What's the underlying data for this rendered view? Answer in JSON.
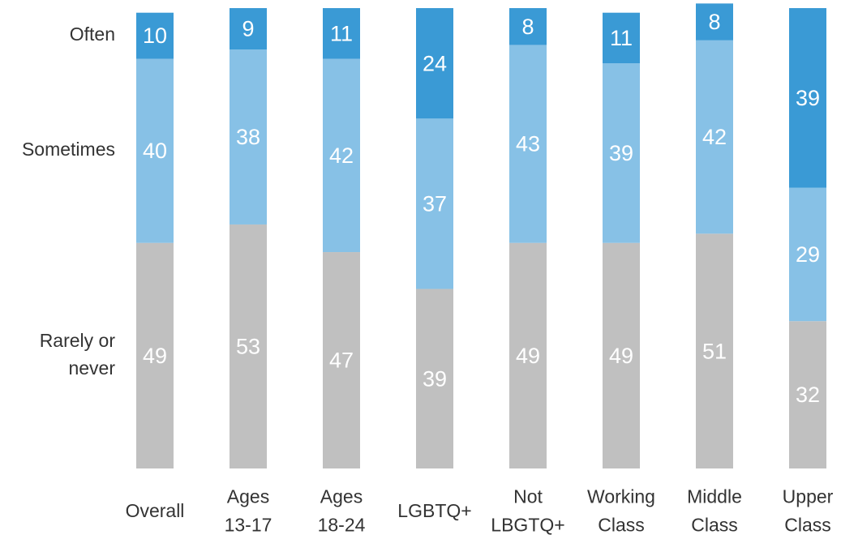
{
  "chart_data": {
    "type": "stacked_bar",
    "categories": [
      "Overall",
      "Ages 13-17",
      "Ages 18-24",
      "LGBTQ+",
      "Not LBGTQ+",
      "Working Class",
      "Middle Class",
      "Upper Class"
    ],
    "series": [
      {
        "name": "Rarely or never",
        "color": "#c0c0c0",
        "values": [
          49,
          53,
          47,
          39,
          49,
          49,
          51,
          32
        ]
      },
      {
        "name": "Sometimes",
        "color": "#87c1e6",
        "values": [
          40,
          38,
          42,
          37,
          43,
          39,
          42,
          29
        ]
      },
      {
        "name": "Often",
        "color": "#3a9ad5",
        "values": [
          10,
          9,
          11,
          24,
          8,
          11,
          8,
          39
        ]
      }
    ],
    "ylim": [
      0,
      100
    ]
  }
}
